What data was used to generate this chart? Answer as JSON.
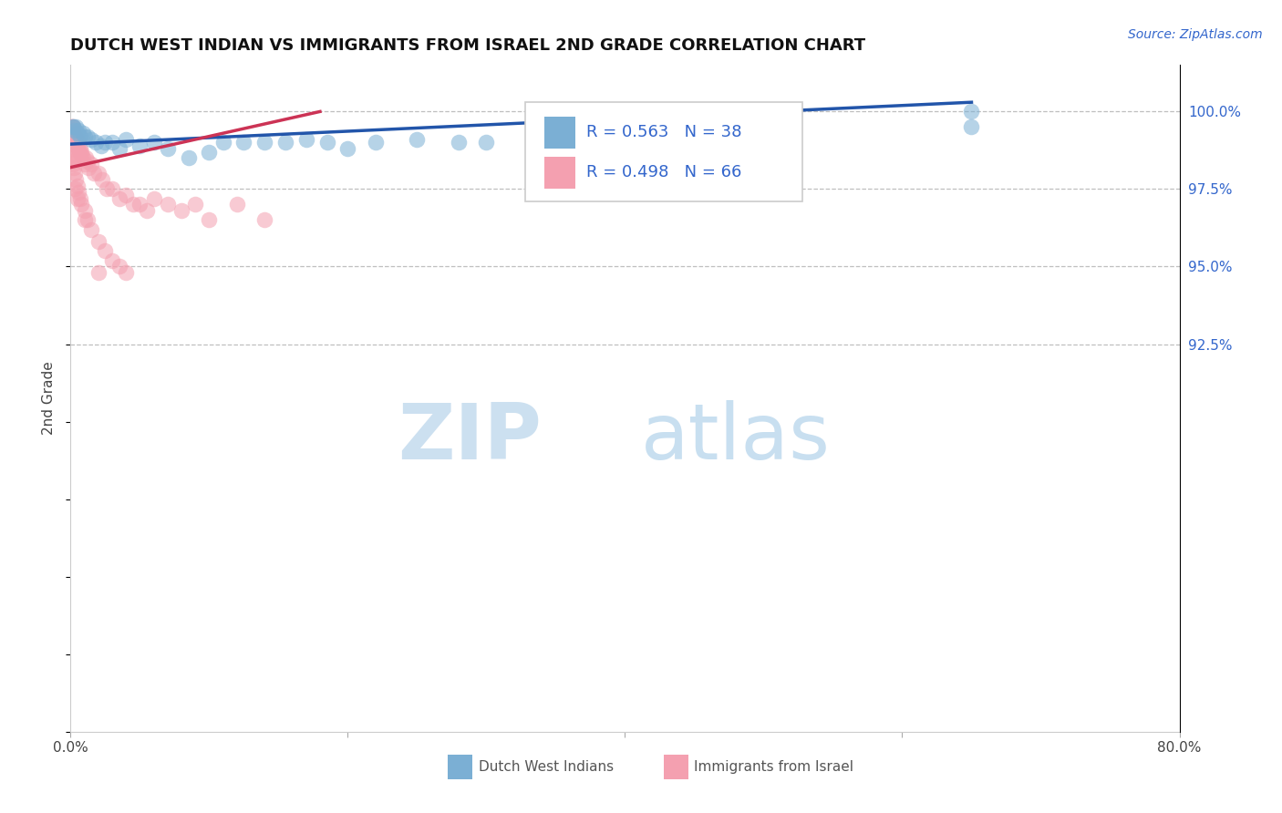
{
  "title": "DUTCH WEST INDIAN VS IMMIGRANTS FROM ISRAEL 2ND GRADE CORRELATION CHART",
  "source_text": "Source: ZipAtlas.com",
  "ylabel": "2nd Grade",
  "xlim": [
    0.0,
    80.0
  ],
  "ylim": [
    80.0,
    101.5
  ],
  "ytick_positions": [
    92.5,
    95.0,
    97.5,
    100.0
  ],
  "ytick_labels_right": [
    "92.5%",
    "95.0%",
    "97.5%",
    "100.0%"
  ],
  "blue_color": "#7bafd4",
  "pink_color": "#f4a0b0",
  "blue_line_color": "#2255aa",
  "pink_line_color": "#cc3355",
  "legend_text_color": "#3366cc",
  "watermark_zip_color": "#cce0f0",
  "watermark_atlas_color": "#c8dff0",
  "R_blue": 0.563,
  "N_blue": 38,
  "R_pink": 0.498,
  "N_pink": 66,
  "blue_trend_x": [
    0.0,
    65.0
  ],
  "blue_trend_y": [
    98.95,
    100.3
  ],
  "pink_trend_x": [
    0.0,
    18.0
  ],
  "pink_trend_y": [
    98.2,
    100.0
  ],
  "blue_scatter_x": [
    0.15,
    0.2,
    0.3,
    0.4,
    0.5,
    0.6,
    0.7,
    0.9,
    1.0,
    1.2,
    1.5,
    1.8,
    2.2,
    2.5,
    3.0,
    3.5,
    4.0,
    5.0,
    6.0,
    7.0,
    8.5,
    10.0,
    11.0,
    12.5,
    14.0,
    15.5,
    17.0,
    18.5,
    20.0,
    22.0,
    25.0,
    28.0,
    30.0,
    35.0,
    40.0,
    50.0,
    65.0,
    65.0
  ],
  "blue_scatter_y": [
    99.5,
    99.5,
    99.4,
    99.5,
    99.3,
    99.4,
    99.2,
    99.3,
    99.2,
    99.2,
    99.1,
    99.0,
    98.9,
    99.0,
    99.0,
    98.8,
    99.1,
    98.9,
    99.0,
    98.8,
    98.5,
    98.7,
    99.0,
    99.0,
    99.0,
    99.0,
    99.1,
    99.0,
    98.8,
    99.0,
    99.1,
    99.0,
    99.0,
    99.0,
    99.0,
    99.2,
    100.0,
    99.5
  ],
  "pink_scatter_x": [
    0.05,
    0.08,
    0.1,
    0.12,
    0.15,
    0.18,
    0.2,
    0.25,
    0.3,
    0.35,
    0.4,
    0.45,
    0.5,
    0.55,
    0.6,
    0.65,
    0.7,
    0.75,
    0.8,
    0.9,
    1.0,
    1.1,
    1.2,
    1.3,
    1.5,
    1.7,
    2.0,
    2.3,
    2.6,
    3.0,
    3.5,
    4.0,
    4.5,
    5.0,
    5.5,
    6.0,
    7.0,
    8.0,
    9.0,
    10.0,
    12.0,
    14.0,
    0.05,
    0.08,
    0.1,
    0.15,
    0.2,
    0.25,
    0.3,
    0.4,
    0.5,
    0.6,
    0.7,
    0.8,
    1.0,
    1.2,
    1.5,
    2.0,
    2.5,
    3.0,
    3.5,
    4.0,
    0.3,
    0.5,
    1.0,
    2.0
  ],
  "pink_scatter_y": [
    99.5,
    99.4,
    99.5,
    99.3,
    99.4,
    99.2,
    99.5,
    99.3,
    99.2,
    99.0,
    99.2,
    98.9,
    99.1,
    98.8,
    99.0,
    98.7,
    98.8,
    98.6,
    98.7,
    98.5,
    98.3,
    98.5,
    98.4,
    98.2,
    98.3,
    98.0,
    98.0,
    97.8,
    97.5,
    97.5,
    97.2,
    97.3,
    97.0,
    97.0,
    96.8,
    97.2,
    97.0,
    96.8,
    97.0,
    96.5,
    97.0,
    96.5,
    98.8,
    98.5,
    98.6,
    98.4,
    98.3,
    98.2,
    98.0,
    97.8,
    97.6,
    97.4,
    97.2,
    97.0,
    96.8,
    96.5,
    96.2,
    95.8,
    95.5,
    95.2,
    95.0,
    94.8,
    97.5,
    97.2,
    96.5,
    94.8
  ]
}
